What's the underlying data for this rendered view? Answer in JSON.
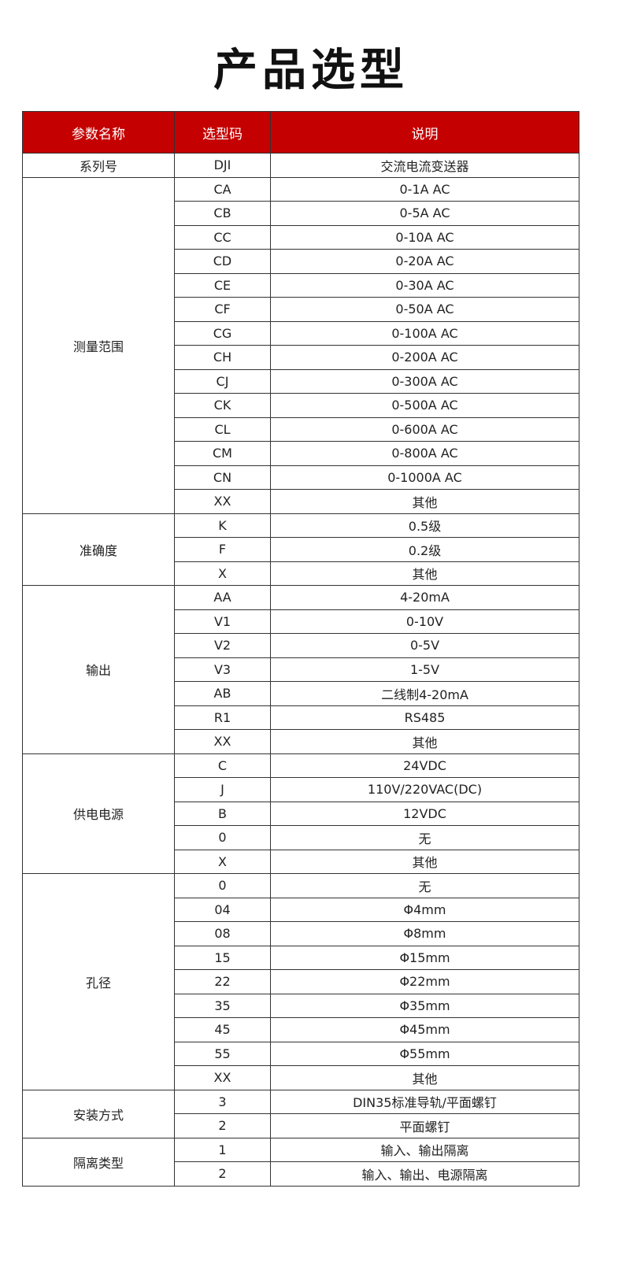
{
  "title": "产品选型",
  "headers": [
    "参数名称",
    "选型码",
    "说明"
  ],
  "colors": {
    "header_bg": "#c50000"
  },
  "groups": [
    {
      "name": "系列号",
      "rows": [
        [
          "DJI",
          "交流电流变送器"
        ]
      ]
    },
    {
      "name": "测量范围",
      "rows": [
        [
          "CA",
          "0-1A AC"
        ],
        [
          "CB",
          "0-5A AC"
        ],
        [
          "CC",
          "0-10A AC"
        ],
        [
          "CD",
          "0-20A AC"
        ],
        [
          "CE",
          "0-30A AC"
        ],
        [
          "CF",
          "0-50A AC"
        ],
        [
          "CG",
          "0-100A AC"
        ],
        [
          "CH",
          "0-200A AC"
        ],
        [
          "CJ",
          "0-300A AC"
        ],
        [
          "CK",
          "0-500A AC"
        ],
        [
          "CL",
          "0-600A AC"
        ],
        [
          "CM",
          "0-800A AC"
        ],
        [
          "CN",
          "0-1000A AC"
        ],
        [
          "XX",
          "其他"
        ]
      ]
    },
    {
      "name": "准确度",
      "rows": [
        [
          "K",
          "0.5级"
        ],
        [
          "F",
          "0.2级"
        ],
        [
          "X",
          "其他"
        ]
      ]
    },
    {
      "name": "输出",
      "rows": [
        [
          "AA",
          "4-20mA"
        ],
        [
          "V1",
          "0-10V"
        ],
        [
          "V2",
          "0-5V"
        ],
        [
          "V3",
          "1-5V"
        ],
        [
          "AB",
          "二线制4-20mA"
        ],
        [
          "R1",
          "RS485"
        ],
        [
          "XX",
          "其他"
        ]
      ]
    },
    {
      "name": "供电电源",
      "rows": [
        [
          "C",
          "24VDC"
        ],
        [
          "J",
          "110V/220VAC(DC)"
        ],
        [
          "B",
          "12VDC"
        ],
        [
          "0",
          "无"
        ],
        [
          "X",
          "其他"
        ]
      ]
    },
    {
      "name": "孔径",
      "rows": [
        [
          "0",
          "无"
        ],
        [
          "04",
          "Φ4mm"
        ],
        [
          "08",
          "Φ8mm"
        ],
        [
          "15",
          "Φ15mm"
        ],
        [
          "22",
          "Φ22mm"
        ],
        [
          "35",
          "Φ35mm"
        ],
        [
          "45",
          "Φ45mm"
        ],
        [
          "55",
          "Φ55mm"
        ],
        [
          "XX",
          "其他"
        ]
      ]
    },
    {
      "name": "安装方式",
      "rows": [
        [
          "3",
          "DIN35标准导轨/平面螺钉"
        ],
        [
          "2",
          "平面螺钉"
        ]
      ]
    },
    {
      "name": "隔离类型",
      "rows": [
        [
          "1",
          "输入、输出隔离"
        ],
        [
          "2",
          "输入、输出、电源隔离"
        ]
      ]
    }
  ]
}
